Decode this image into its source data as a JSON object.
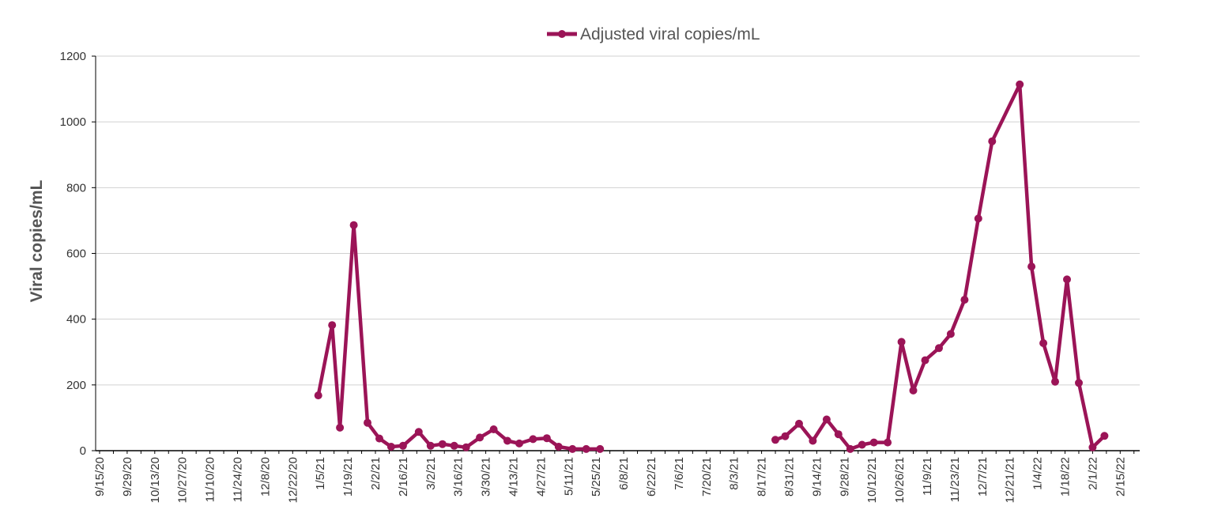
{
  "chart_data": {
    "type": "line",
    "ylabel": "Viral copies/mL",
    "ylim": [
      0,
      1200
    ],
    "yticks": [
      0,
      200,
      400,
      600,
      800,
      1000,
      1200
    ],
    "grid": true,
    "legend_placement": "top-center",
    "series_color": "#9b1457",
    "x_tick_labels": [
      "9/15/20",
      "9/29/20",
      "10/13/20",
      "10/27/20",
      "11/10/20",
      "11/24/20",
      "12/8/20",
      "12/22/20",
      "1/5/21",
      "1/19/21",
      "2/2/21",
      "2/16/21",
      "3/2/21",
      "3/16/21",
      "3/30/21",
      "4/13/21",
      "4/27/21",
      "5/11/21",
      "5/25/21",
      "6/8/21",
      "6/22/21",
      "7/6/21",
      "7/20/21",
      "8/3/21",
      "8/17/21",
      "8/31/21",
      "9/14/21",
      "9/28/21",
      "10/12/21",
      "10/26/21",
      "11/9/21",
      "11/23/21",
      "12/7/21",
      "12/21/21",
      "1/4/22",
      "1/18/22",
      "2/1/22",
      "2/15/22"
    ],
    "series": [
      {
        "name": "Adjusted viral copies/mL",
        "segments": [
          [
            [
              "2021-01-04",
              168
            ],
            [
              "2021-01-11",
              382
            ],
            [
              "2021-01-15",
              70
            ],
            [
              "2021-01-22",
              686
            ],
            [
              "2021-01-29",
              85
            ],
            [
              "2021-02-04",
              37
            ],
            [
              "2021-02-10",
              12
            ],
            [
              "2021-02-16",
              15
            ],
            [
              "2021-02-24",
              57
            ],
            [
              "2021-03-02",
              15
            ],
            [
              "2021-03-08",
              20
            ],
            [
              "2021-03-14",
              15
            ],
            [
              "2021-03-20",
              10
            ],
            [
              "2021-03-27",
              40
            ],
            [
              "2021-04-03",
              65
            ],
            [
              "2021-04-10",
              30
            ],
            [
              "2021-04-16",
              22
            ],
            [
              "2021-04-23",
              35
            ],
            [
              "2021-04-30",
              38
            ],
            [
              "2021-05-06",
              12
            ],
            [
              "2021-05-13",
              5
            ],
            [
              "2021-05-20",
              5
            ],
            [
              "2021-05-27",
              5
            ]
          ],
          [
            [
              "2021-08-24",
              33
            ],
            [
              "2021-08-29",
              44
            ],
            [
              "2021-09-05",
              82
            ],
            [
              "2021-09-12",
              30
            ],
            [
              "2021-09-19",
              95
            ],
            [
              "2021-09-25",
              50
            ],
            [
              "2021-10-01",
              5
            ],
            [
              "2021-10-07",
              18
            ],
            [
              "2021-10-13",
              25
            ],
            [
              "2021-10-20",
              25
            ],
            [
              "2021-10-27",
              331
            ],
            [
              "2021-11-02",
              183
            ],
            [
              "2021-11-08",
              275
            ],
            [
              "2021-11-15",
              312
            ],
            [
              "2021-11-21",
              355
            ],
            [
              "2021-11-28",
              459
            ],
            [
              "2021-12-05",
              706
            ],
            [
              "2021-12-12",
              941
            ],
            [
              "2021-12-26",
              1114
            ],
            [
              "2022-01-01",
              560
            ],
            [
              "2022-01-07",
              327
            ],
            [
              "2022-01-13",
              210
            ],
            [
              "2022-01-19",
              521
            ],
            [
              "2022-01-25",
              206
            ],
            [
              "2022-02-01",
              10
            ],
            [
              "2022-02-07",
              45
            ]
          ]
        ]
      }
    ]
  }
}
